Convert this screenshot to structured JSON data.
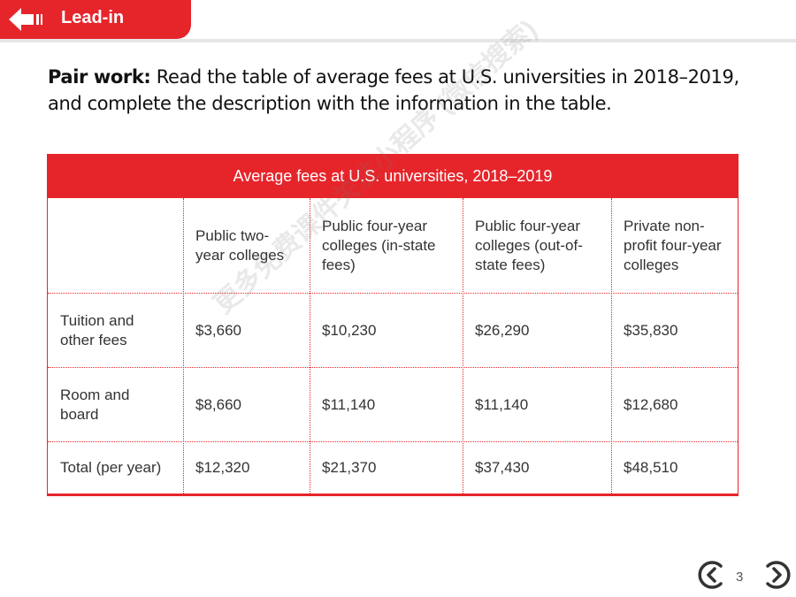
{
  "header": {
    "section_label": "Lead-in",
    "accent": "#e6252b",
    "icon": "back-arrow-icon"
  },
  "instructions": {
    "bold_lead": "Pair work:",
    "text": " Read the table of average fees at U.S. universities in 2018–2019, and complete the description with the information in the table."
  },
  "table": {
    "caption": "Average fees at U.S. universities, 2018–2019",
    "columns": [
      "",
      "Public two-year colleges",
      "Public four-year colleges (in-state fees)",
      "Public four-year colleges (out-of-state fees)",
      "Private non-profit four-year colleges"
    ],
    "rows": [
      {
        "label": "Tuition and other fees",
        "values": [
          "$3,660",
          "$10,230",
          "$26,290",
          "$35,830"
        ]
      },
      {
        "label": "Room and board",
        "values": [
          "$8,660",
          "$11,140",
          "$11,140",
          "$12,680"
        ]
      },
      {
        "label": "Total (per year)",
        "values": [
          "$12,320",
          "$21,370",
          "$37,430",
          "$48,510"
        ]
      }
    ]
  },
  "watermark": "更多免费课件关注小程序 (微信搜索)",
  "navigation": {
    "page_number": "3",
    "prev_icon": "chevron-left-circle-icon",
    "next_icon": "chevron-right-circle-icon"
  }
}
